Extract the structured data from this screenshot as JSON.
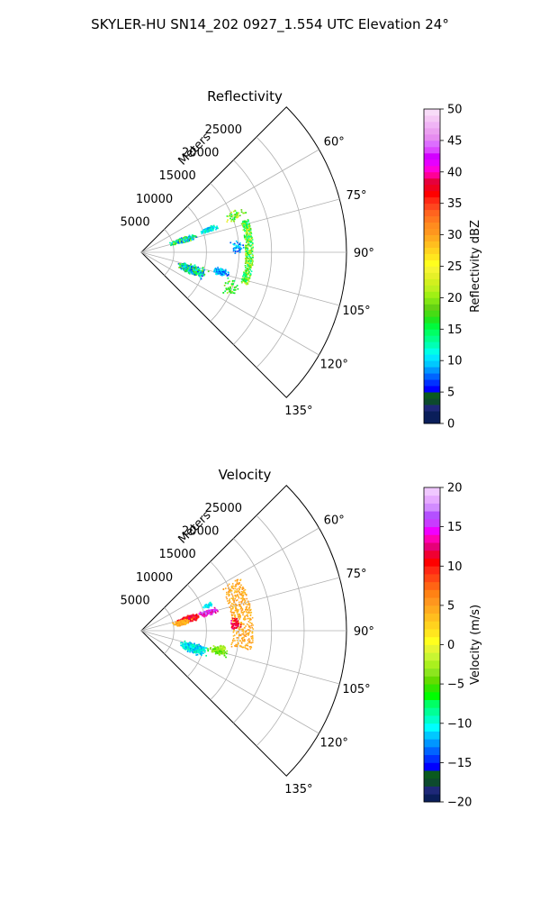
{
  "figure": {
    "suptitle": "SKYLER-HU  SN14_202  0927_1.554 UTC Elevation 24°"
  },
  "chart_data": [
    {
      "type": "polar-sector",
      "title": "Reflectivity",
      "range_label": "Meters",
      "range_ticks": [
        5000,
        10000,
        15000,
        20000,
        25000
      ],
      "range_tick_labels": [
        "5000",
        "10000",
        "15000",
        "20000",
        "25000"
      ],
      "rmax": 31500,
      "theta_range_deg": [
        45,
        135
      ],
      "theta_ticks": [
        60,
        75,
        90,
        105,
        120,
        135
      ],
      "theta_tick_labels": [
        "60°",
        "75°",
        "90°",
        "105°",
        "120°",
        "135°"
      ],
      "grid": true,
      "colorbar": {
        "label": "Reflectivity dBZ",
        "vmin": 0,
        "vmax": 50,
        "ticks": [
          0,
          5,
          10,
          15,
          20,
          25,
          30,
          35,
          40,
          45,
          50
        ],
        "tick_labels": [
          "0",
          "5",
          "10",
          "15",
          "20",
          "25",
          "30",
          "35",
          "40",
          "45",
          "50"
        ]
      },
      "clusters": [
        {
          "az": [
            70,
            78
          ],
          "r": [
            4200,
            9200
          ],
          "values": [
            6,
            22
          ],
          "density": "dense"
        },
        {
          "az": [
            69,
            74
          ],
          "r": [
            9500,
            12500
          ],
          "values": [
            8,
            14
          ],
          "density": "medium"
        },
        {
          "az": [
            64,
            73
          ],
          "r": [
            13500,
            17500
          ],
          "values": [
            14,
            24
          ],
          "density": "sparse"
        },
        {
          "az": [
            73,
            107
          ],
          "r": [
            16000,
            17200
          ],
          "values": [
            12,
            24
          ],
          "density": "arc"
        },
        {
          "az": [
            82,
            92
          ],
          "r": [
            13500,
            16000
          ],
          "values": [
            6,
            12
          ],
          "density": "sparse"
        },
        {
          "az": [
            103,
            115
          ],
          "r": [
            5500,
            11000
          ],
          "values": [
            6,
            20
          ],
          "density": "dense"
        },
        {
          "az": [
            101,
            107
          ],
          "r": [
            11000,
            14000
          ],
          "values": [
            6,
            12
          ],
          "density": "medium"
        },
        {
          "az": [
            105,
            118
          ],
          "r": [
            13000,
            16500
          ],
          "values": [
            14,
            22
          ],
          "density": "sparse"
        }
      ]
    },
    {
      "type": "polar-sector",
      "title": "Velocity",
      "range_label": "Meters",
      "range_ticks": [
        5000,
        10000,
        15000,
        20000,
        25000
      ],
      "range_tick_labels": [
        "5000",
        "10000",
        "15000",
        "20000",
        "25000"
      ],
      "rmax": 31500,
      "theta_range_deg": [
        45,
        135
      ],
      "theta_ticks": [
        60,
        75,
        90,
        105,
        120,
        135
      ],
      "theta_tick_labels": [
        "60°",
        "75°",
        "90°",
        "105°",
        "120°",
        "135°"
      ],
      "grid": true,
      "colorbar": {
        "label": "Velocity (m/s)",
        "vmin": -20,
        "vmax": 20,
        "ticks": [
          -20,
          -15,
          -10,
          -5,
          0,
          5,
          10,
          15,
          20
        ],
        "tick_labels": [
          "−20",
          "−15",
          "−10",
          "−5",
          "0",
          "5",
          "10",
          "15",
          "20"
        ]
      },
      "clusters": [
        {
          "az": [
            72,
            80
          ],
          "r": [
            5500,
            9500
          ],
          "values": [
            8,
            13
          ],
          "density": "dense"
        },
        {
          "az": [
            74,
            84
          ],
          "r": [
            4500,
            8000
          ],
          "values": [
            3,
            6
          ],
          "density": "medium"
        },
        {
          "az": [
            72,
            78
          ],
          "r": [
            9000,
            12500
          ],
          "values": [
            12,
            18
          ],
          "density": "medium"
        },
        {
          "az": [
            67,
            72
          ],
          "r": [
            10000,
            12000
          ],
          "values": [
            -12,
            -9
          ],
          "density": "sparse"
        },
        {
          "az": [
            62,
            100
          ],
          "r": [
            14000,
            17200
          ],
          "values": [
            3,
            6
          ],
          "density": "arc"
        },
        {
          "az": [
            82,
            90
          ],
          "r": [
            13500,
            15500
          ],
          "values": [
            10,
            14
          ],
          "density": "sparse"
        },
        {
          "az": [
            102,
            115
          ],
          "r": [
            6000,
            11000
          ],
          "values": [
            -13,
            -8
          ],
          "density": "dense"
        },
        {
          "az": [
            101,
            108
          ],
          "r": [
            10500,
            14000
          ],
          "values": [
            -6,
            -2
          ],
          "density": "medium"
        },
        {
          "az": [
            100,
            104
          ],
          "r": [
            12000,
            13500
          ],
          "values": [
            -4,
            -1
          ],
          "density": "sparse"
        }
      ]
    }
  ]
}
